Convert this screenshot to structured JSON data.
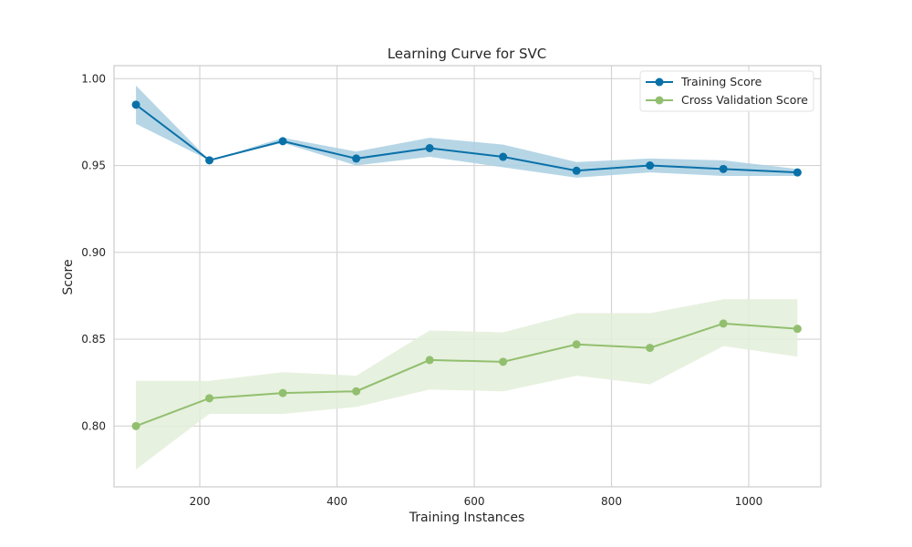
{
  "chart_data": {
    "type": "line",
    "title": "Learning Curve for SVC",
    "xlabel": "Training Instances",
    "ylabel": "Score",
    "xlim": [
      75,
      1105
    ],
    "ylim": [
      0.765,
      1.0075
    ],
    "xticks": [
      200,
      400,
      600,
      800,
      1000
    ],
    "xtick_labels": [
      "200",
      "400",
      "600",
      "800",
      "1000"
    ],
    "yticks": [
      0.8,
      0.85,
      0.9,
      0.95,
      1.0
    ],
    "ytick_labels": [
      "0.80",
      "0.85",
      "0.90",
      "0.95",
      "1.00"
    ],
    "grid": true,
    "legend_position": "top-right",
    "x": [
      107,
      214,
      321,
      428,
      535,
      642,
      749,
      856,
      963,
      1071
    ],
    "series": [
      {
        "name": "Training Score",
        "color": "#0a71a8",
        "band_color": "#a9cfe2",
        "values": [
          0.985,
          0.953,
          0.964,
          0.954,
          0.96,
          0.955,
          0.947,
          0.95,
          0.948,
          0.946
        ],
        "lower": [
          0.974,
          0.953,
          0.963,
          0.95,
          0.955,
          0.949,
          0.943,
          0.946,
          0.944,
          0.944
        ],
        "upper": [
          0.996,
          0.953,
          0.966,
          0.958,
          0.966,
          0.962,
          0.952,
          0.954,
          0.953,
          0.948
        ]
      },
      {
        "name": "Cross Validation Score",
        "color": "#92bf6f",
        "band_color": "#e3eed9",
        "values": [
          0.8,
          0.816,
          0.819,
          0.82,
          0.838,
          0.837,
          0.847,
          0.845,
          0.859,
          0.856
        ],
        "lower": [
          0.775,
          0.807,
          0.807,
          0.811,
          0.821,
          0.82,
          0.829,
          0.824,
          0.846,
          0.84
        ],
        "upper": [
          0.826,
          0.826,
          0.831,
          0.829,
          0.855,
          0.854,
          0.865,
          0.865,
          0.873,
          0.873
        ]
      }
    ]
  }
}
